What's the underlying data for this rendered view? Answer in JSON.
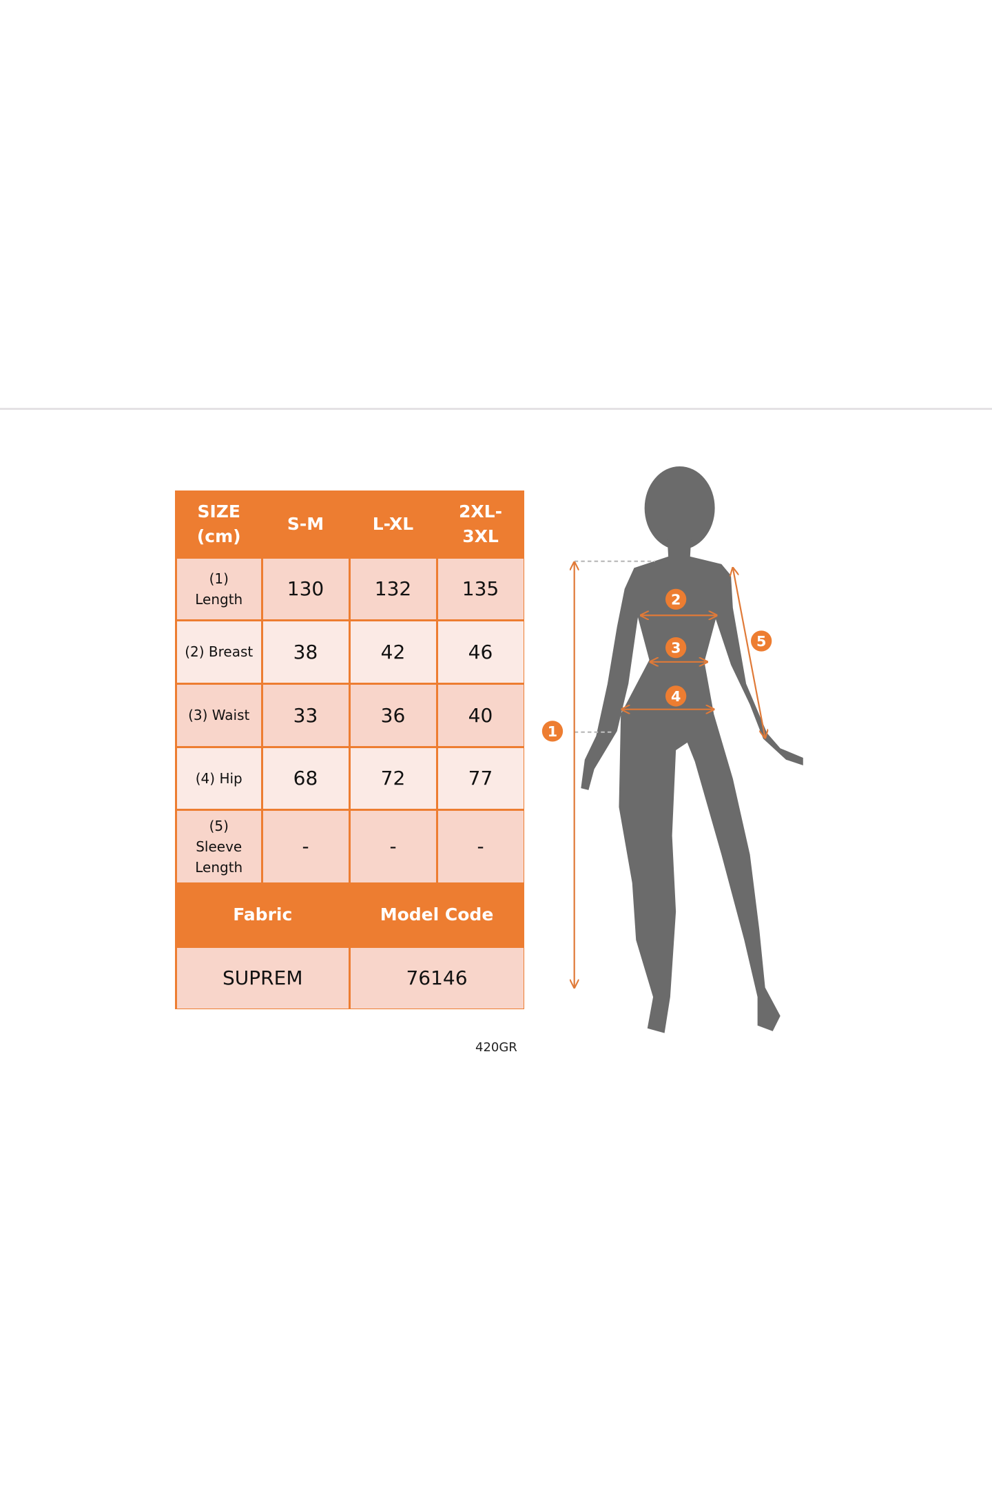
{
  "size_chart": {
    "header": [
      "SIZE (cm)",
      "S-M",
      "L-XL",
      "2XL-3XL"
    ],
    "header_lines": [
      [
        "SIZE",
        "(cm)"
      ],
      [
        "S-M"
      ],
      [
        "L-XL"
      ],
      [
        "2XL-",
        "3XL"
      ]
    ],
    "rows": [
      {
        "label_lines": [
          "(1)",
          "Length"
        ],
        "values": [
          "130",
          "132",
          "135"
        ]
      },
      {
        "label_lines": [
          "(2) Breast"
        ],
        "values": [
          "38",
          "42",
          "46"
        ]
      },
      {
        "label_lines": [
          "(3) Waist"
        ],
        "values": [
          "33",
          "36",
          "40"
        ]
      },
      {
        "label_lines": [
          "(4) Hip"
        ],
        "values": [
          "68",
          "72",
          "77"
        ]
      },
      {
        "label_lines": [
          "(5)",
          "Sleeve",
          "Length"
        ],
        "values": [
          "-",
          "-",
          "-"
        ]
      }
    ],
    "footer_header": [
      "Fabric",
      "Model Code"
    ],
    "footer_values": [
      "SUPREM",
      "76146"
    ]
  },
  "product_code": "420GR",
  "measure_markers": [
    "1",
    "2",
    "3",
    "4",
    "5"
  ],
  "colors": {
    "accent": "#ED7D31",
    "row_dark": "#F8D5CA",
    "row_light": "#FBEAE5",
    "silhouette": "#6b6b6b"
  }
}
